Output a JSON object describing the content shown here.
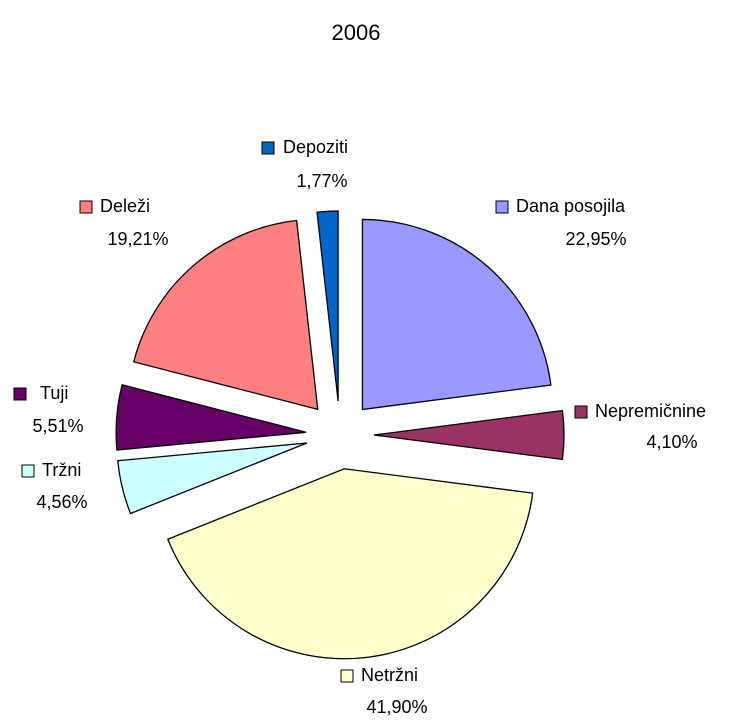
{
  "chart_data": {
    "type": "pie",
    "title": "2006",
    "categories": [
      "Dana posojila",
      "Nepremičnine",
      "Netržni",
      "Tržni",
      "Tuji",
      "Deleži",
      "Depoziti"
    ],
    "values": [
      22.95,
      4.1,
      41.9,
      4.56,
      5.51,
      19.21,
      1.77
    ],
    "value_labels": [
      "22,95%",
      "4,10%",
      "41,90%",
      "4,56%",
      "5,51%",
      "19,21%",
      "1,77%"
    ],
    "colors": [
      "#9999ff",
      "#993366",
      "#ffffcc",
      "#ccffff",
      "#660066",
      "#ff8080",
      "#0066cc"
    ]
  }
}
